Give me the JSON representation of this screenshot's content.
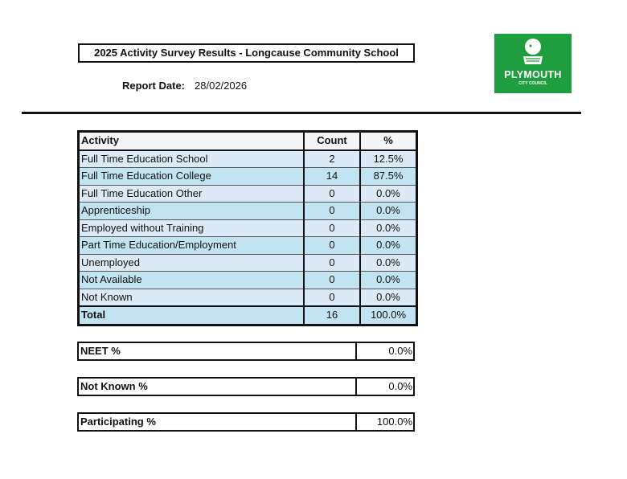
{
  "title": "2025 Activity Survey Results - Longcause Community School",
  "report_date": {
    "label": "Report Date:",
    "value": "28/02/2026"
  },
  "logo": {
    "line1": "PLYMOUTH",
    "line2": "CITY COUNCIL",
    "color": "#1e9e3e"
  },
  "table": {
    "headers": [
      "Activity",
      "Count",
      "%"
    ],
    "rows": [
      [
        "Full Time Education School",
        "2",
        "12.5%"
      ],
      [
        "Full Time Education College",
        "14",
        "87.5%"
      ],
      [
        "Full Time Education Other",
        "0",
        "0.0%"
      ],
      [
        "Apprenticeship",
        "0",
        "0.0%"
      ],
      [
        "Employed without Training",
        "0",
        "0.0%"
      ],
      [
        "Part Time Education/Employment",
        "0",
        "0.0%"
      ],
      [
        "Unemployed",
        "0",
        "0.0%"
      ],
      [
        "Not Available",
        "0",
        "0.0%"
      ],
      [
        "Not Known",
        "0",
        "0.0%"
      ]
    ],
    "total": [
      "Total",
      "16",
      "100.0%"
    ]
  },
  "summary": [
    {
      "label": "NEET %",
      "value": "0.0%"
    },
    {
      "label": "Not Known %",
      "value": "0.0%"
    },
    {
      "label": "Participating %",
      "value": "100.0%"
    }
  ]
}
